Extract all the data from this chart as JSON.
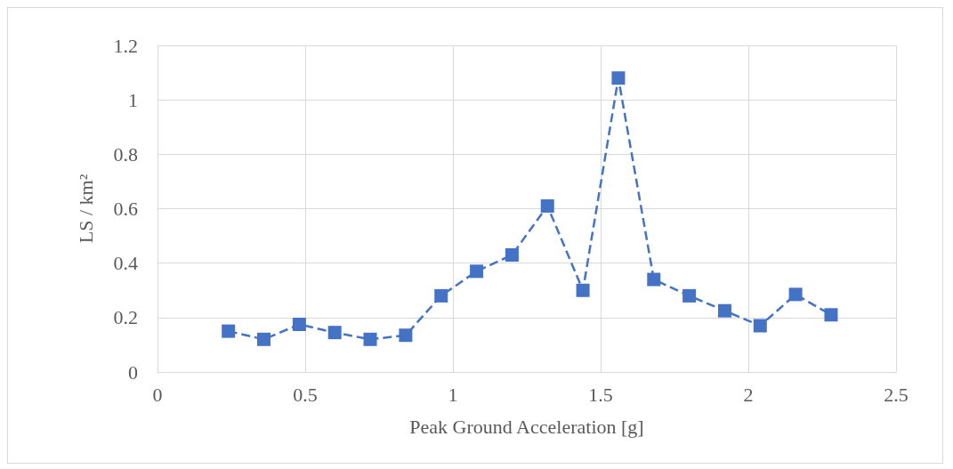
{
  "chart_data": {
    "type": "line",
    "xlabel": "Peak Ground Acceleration [g]",
    "ylabel": "LS / km²",
    "x": [
      0.24,
      0.36,
      0.48,
      0.6,
      0.72,
      0.84,
      0.96,
      1.08,
      1.2,
      1.32,
      1.44,
      1.56,
      1.68,
      1.8,
      1.92,
      2.04,
      2.16,
      2.28
    ],
    "series": [
      {
        "color": "#4472c4",
        "values": [
          0.15,
          0.12,
          0.175,
          0.145,
          0.12,
          0.135,
          0.28,
          0.37,
          0.43,
          0.61,
          0.3,
          1.08,
          0.34,
          0.28,
          0.225,
          0.17,
          0.285,
          0.21
        ]
      }
    ],
    "xlim": [
      0,
      2.5
    ],
    "xticks": [
      0,
      0.5,
      1,
      1.5,
      2,
      2.5
    ],
    "ylim": [
      0,
      1.2
    ],
    "yticks": [
      0,
      0.2,
      0.4,
      0.6,
      0.8,
      1,
      1.2
    ],
    "grid": true,
    "marker": "square",
    "line_style": "dashed"
  }
}
